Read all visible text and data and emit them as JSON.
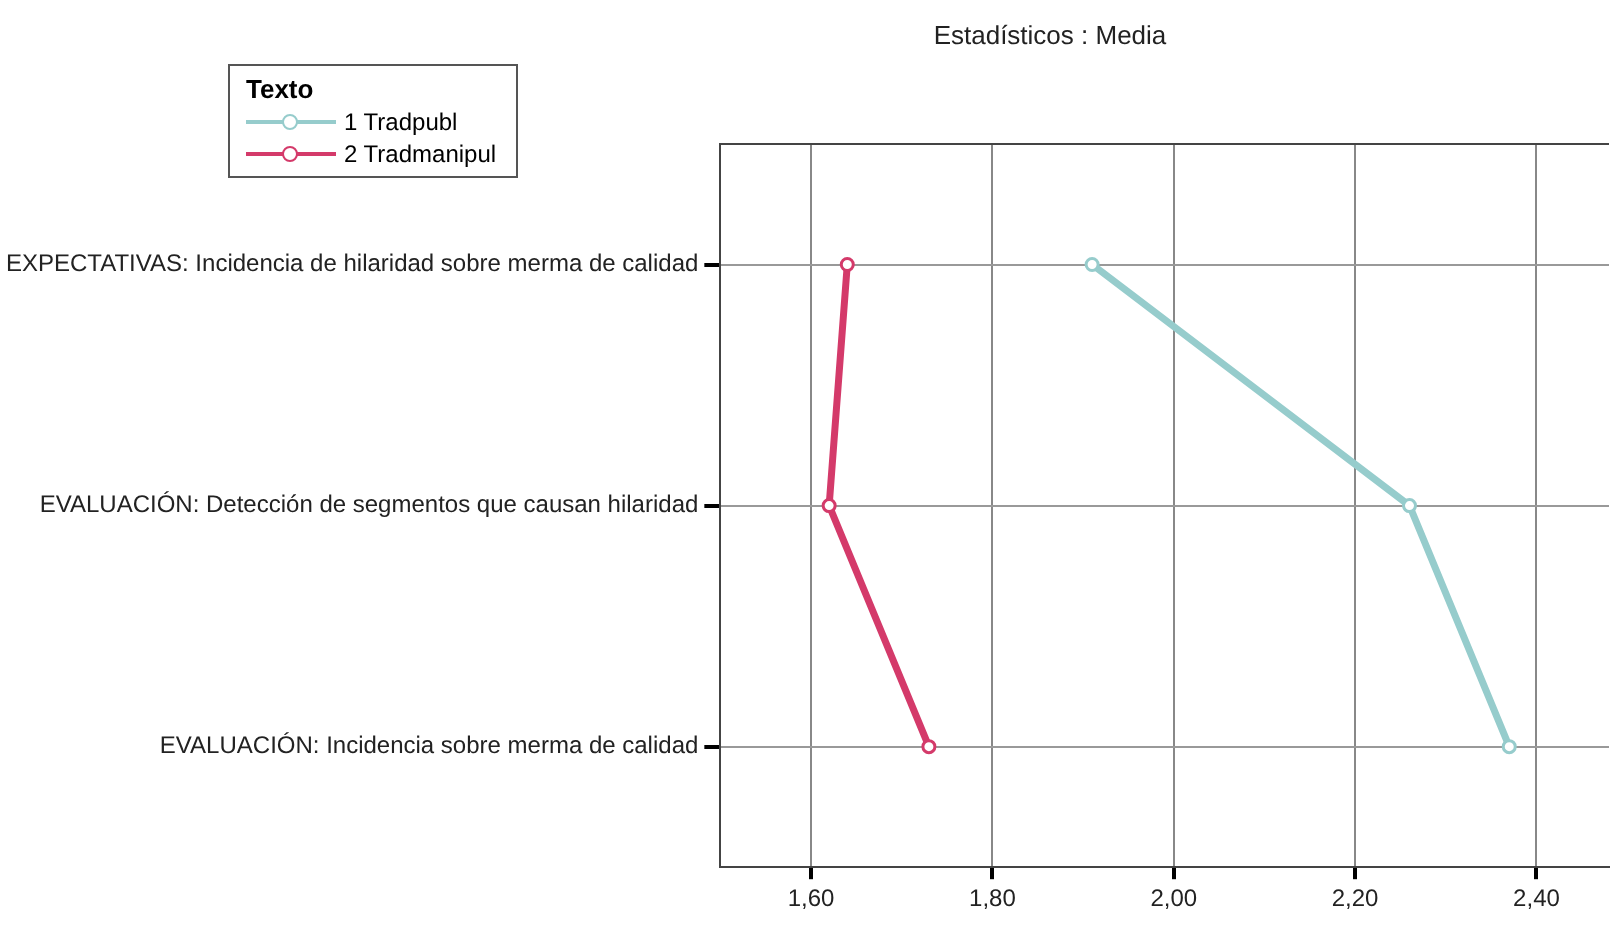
{
  "chart_data": {
    "type": "line",
    "orientation": "horizontal",
    "title": "Estadísticos : Media",
    "legend_title": "Texto",
    "categories": [
      "EXPECTATIVAS: Incidencia de hilaridad sobre merma de calidad",
      "EVALUACIÓN: Detección de segmentos que causan hilaridad",
      "EVALUACIÓN: Incidencia sobre merma de calidad"
    ],
    "series": [
      {
        "name": "1 Tradpubl",
        "color": "#96cccc",
        "values": [
          1.91,
          2.26,
          2.37
        ]
      },
      {
        "name": "2 Tradmanipul",
        "color": "#d43a6a",
        "values": [
          1.64,
          1.62,
          1.73
        ]
      }
    ],
    "xlim": [
      1.5,
      2.48
    ],
    "xticks": [
      {
        "value": 1.6,
        "label": "1,60"
      },
      {
        "value": 1.8,
        "label": "1,80"
      },
      {
        "value": 2.0,
        "label": "2,00"
      },
      {
        "value": 2.2,
        "label": "2,20"
      },
      {
        "value": 2.4,
        "label": "2,40"
      }
    ],
    "grid": true,
    "legend": "top left",
    "marker": "circle",
    "line_style": "solid"
  }
}
